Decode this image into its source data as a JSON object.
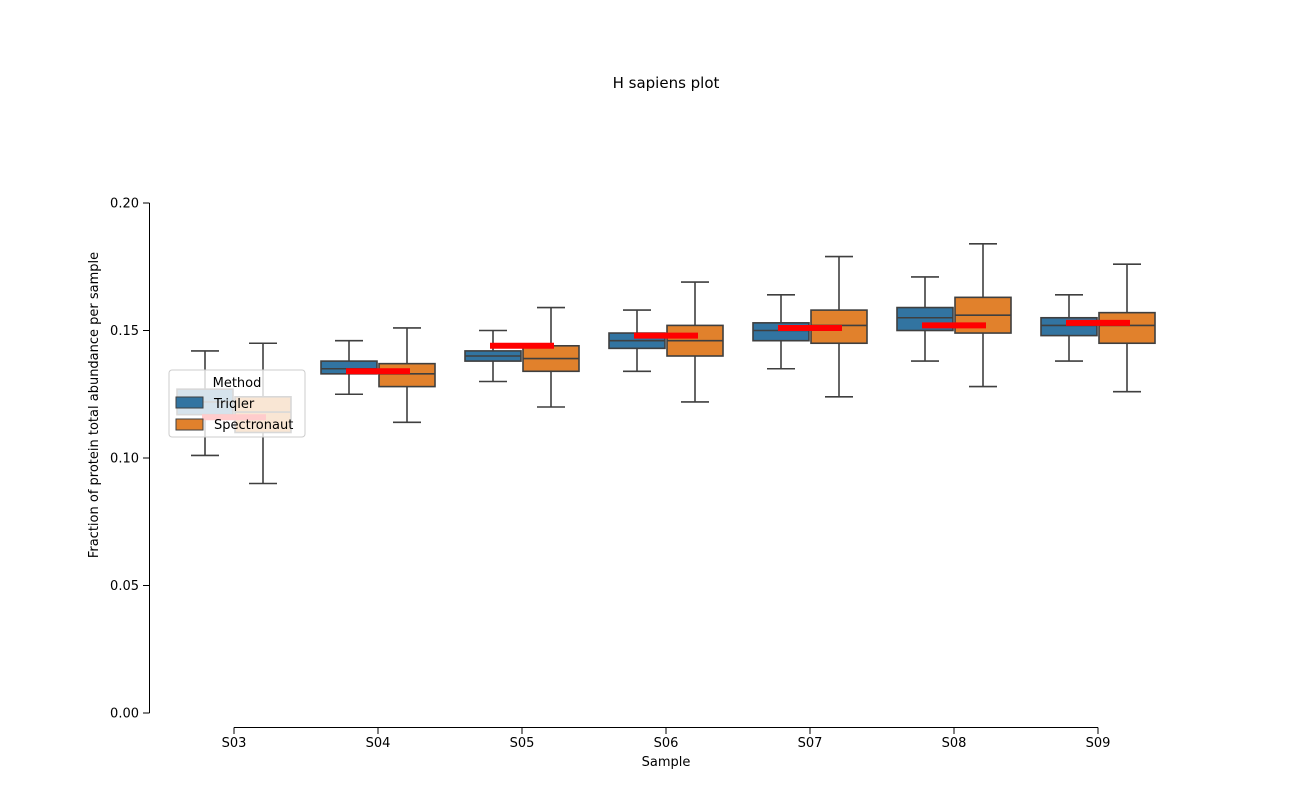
{
  "chart_data": {
    "type": "box",
    "title": "H sapiens plot",
    "xlabel": "Sample",
    "ylabel": "Fraction of protein total abundance per sample",
    "ylim": [
      0.0,
      0.2
    ],
    "yticks": [
      "0.00",
      "0.05",
      "0.10",
      "0.15",
      "0.20"
    ],
    "ytick_values": [
      0.0,
      0.05,
      0.1,
      0.15,
      0.2
    ],
    "categories": [
      "S03",
      "S04",
      "S05",
      "S06",
      "S07",
      "S08",
      "S09"
    ],
    "grid": false,
    "legend": {
      "title": "Method",
      "placement": "center-left",
      "entries": [
        "Triqler",
        "Spectronaut"
      ]
    },
    "colors": {
      "Triqler": "#3274a1",
      "Spectronaut": "#e1812c",
      "reference": "#ff0000",
      "box_edge": "#3f3f3f"
    },
    "series": [
      {
        "name": "Triqler",
        "boxes": [
          {
            "whisker_low": 0.101,
            "q1": 0.117,
            "median": 0.122,
            "q3": 0.127,
            "whisker_high": 0.142
          },
          {
            "whisker_low": 0.125,
            "q1": 0.133,
            "median": 0.135,
            "q3": 0.138,
            "whisker_high": 0.146
          },
          {
            "whisker_low": 0.13,
            "q1": 0.138,
            "median": 0.14,
            "q3": 0.142,
            "whisker_high": 0.15
          },
          {
            "whisker_low": 0.134,
            "q1": 0.143,
            "median": 0.146,
            "q3": 0.149,
            "whisker_high": 0.158
          },
          {
            "whisker_low": 0.135,
            "q1": 0.146,
            "median": 0.15,
            "q3": 0.153,
            "whisker_high": 0.164
          },
          {
            "whisker_low": 0.138,
            "q1": 0.15,
            "median": 0.155,
            "q3": 0.159,
            "whisker_high": 0.171
          },
          {
            "whisker_low": 0.138,
            "q1": 0.148,
            "median": 0.152,
            "q3": 0.155,
            "whisker_high": 0.164
          }
        ]
      },
      {
        "name": "Spectronaut",
        "boxes": [
          {
            "whisker_low": 0.09,
            "q1": 0.11,
            "median": 0.118,
            "q3": 0.124,
            "whisker_high": 0.145
          },
          {
            "whisker_low": 0.114,
            "q1": 0.128,
            "median": 0.133,
            "q3": 0.137,
            "whisker_high": 0.151
          },
          {
            "whisker_low": 0.12,
            "q1": 0.134,
            "median": 0.139,
            "q3": 0.144,
            "whisker_high": 0.159
          },
          {
            "whisker_low": 0.122,
            "q1": 0.14,
            "median": 0.146,
            "q3": 0.152,
            "whisker_high": 0.169
          },
          {
            "whisker_low": 0.124,
            "q1": 0.145,
            "median": 0.152,
            "q3": 0.158,
            "whisker_high": 0.179
          },
          {
            "whisker_low": 0.128,
            "q1": 0.149,
            "median": 0.156,
            "q3": 0.163,
            "whisker_high": 0.184
          },
          {
            "whisker_low": 0.126,
            "q1": 0.145,
            "median": 0.152,
            "q3": 0.157,
            "whisker_high": 0.176
          }
        ]
      }
    ],
    "reference_values": [
      0.116,
      0.134,
      0.144,
      0.148,
      0.151,
      0.152,
      0.153
    ]
  }
}
